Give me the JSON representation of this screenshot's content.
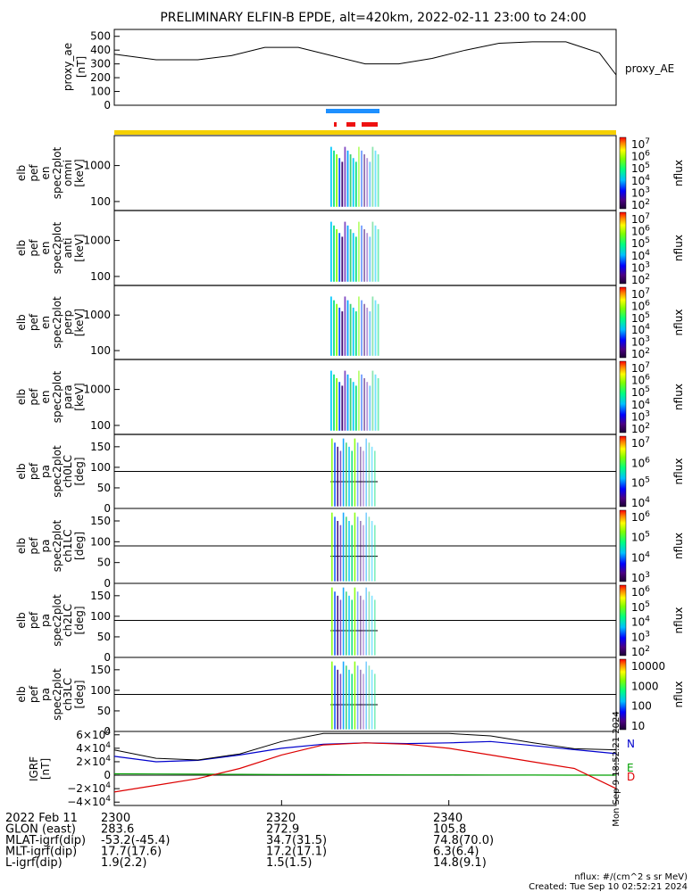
{
  "title": "PRELIMINARY ELFIN-B EPDE, alt=420km, 2022-02-11 23:00 to 24:00",
  "colors": {
    "blue_bar": "#1e90ff",
    "red_marks": "#ee1111",
    "yellow_bar": "#f5d000"
  },
  "chart_data": [
    {
      "type": "line",
      "name": "proxy_ae",
      "ylabel": [
        "proxy_ae",
        "[nT]"
      ],
      "legend": "proxy_AE",
      "yticks": [
        "500",
        "400",
        "300",
        "200",
        "100",
        "0"
      ],
      "ylim": [
        0,
        550
      ],
      "x": [
        2300,
        2305,
        2310,
        2314,
        2318,
        2322,
        2326,
        2330,
        2334,
        2338,
        2342,
        2346,
        2350,
        2354,
        2358,
        2360
      ],
      "y": [
        370,
        330,
        330,
        360,
        420,
        420,
        360,
        300,
        300,
        340,
        400,
        450,
        460,
        460,
        380,
        220
      ]
    },
    {
      "type": "heatmap",
      "name": "omni",
      "ylabel": [
        "elb",
        "pef",
        "en",
        "spec2plot",
        "omni",
        "[keV]"
      ],
      "yticks": [
        "1000",
        "100"
      ],
      "zlabel": "nflux",
      "zticks": [
        "10^7",
        "10^6",
        "10^5",
        "10^4",
        "10^3",
        "10^2"
      ]
    },
    {
      "type": "heatmap",
      "name": "anti",
      "ylabel": [
        "elb",
        "pef",
        "en",
        "spec2plot",
        "anti",
        "[keV]"
      ],
      "yticks": [
        "1000",
        "100"
      ],
      "zlabel": "nflux",
      "zticks": [
        "10^7",
        "10^6",
        "10^5",
        "10^4",
        "10^3",
        "10^2"
      ]
    },
    {
      "type": "heatmap",
      "name": "perp",
      "ylabel": [
        "elb",
        "pef",
        "en",
        "spec2plot",
        "perp",
        "[keV]"
      ],
      "yticks": [
        "1000",
        "100"
      ],
      "zlabel": "nflux",
      "zticks": [
        "10^7",
        "10^6",
        "10^5",
        "10^4",
        "10^3",
        "10^2"
      ]
    },
    {
      "type": "heatmap",
      "name": "para",
      "ylabel": [
        "elb",
        "pef",
        "en",
        "spec2plot",
        "para",
        "[keV]"
      ],
      "yticks": [
        "1000",
        "100"
      ],
      "zlabel": "nflux",
      "zticks": [
        "10^7",
        "10^6",
        "10^5",
        "10^4",
        "10^3",
        "10^2"
      ]
    },
    {
      "type": "heatmap",
      "name": "ch0LC",
      "ylabel": [
        "elb",
        "pef",
        "pa",
        "spec2plot",
        "ch0LC",
        "[deg]"
      ],
      "yticks": [
        "150",
        "100",
        "50",
        "0"
      ],
      "zlabel": "nflux",
      "zticks": [
        "10^7",
        "10^6",
        "10^5",
        "10^4"
      ]
    },
    {
      "type": "heatmap",
      "name": "ch1LC",
      "ylabel": [
        "elb",
        "pef",
        "pa",
        "spec2plot",
        "ch1LC",
        "[deg]"
      ],
      "yticks": [
        "150",
        "100",
        "50",
        "0"
      ],
      "zlabel": "nflux",
      "zticks": [
        "10^6",
        "10^5",
        "10^4",
        "10^3"
      ]
    },
    {
      "type": "heatmap",
      "name": "ch2LC",
      "ylabel": [
        "elb",
        "pef",
        "pa",
        "spec2plot",
        "ch2LC",
        "[deg]"
      ],
      "yticks": [
        "150",
        "100",
        "50",
        "0"
      ],
      "zlabel": "nflux",
      "zticks": [
        "10^6",
        "10^5",
        "10^4",
        "10^3",
        "10^2"
      ]
    },
    {
      "type": "heatmap",
      "name": "ch3LC",
      "ylabel": [
        "elb",
        "pef",
        "pa",
        "spec2plot",
        "ch3LC",
        "[deg]"
      ],
      "yticks": [
        "150",
        "100",
        "50",
        "0"
      ],
      "zlabel": "nflux",
      "zticks": [
        "10000",
        "1000",
        "100",
        "10"
      ]
    },
    {
      "type": "line",
      "name": "IGRF",
      "ylabel": [
        "IGRF",
        "[nT]"
      ],
      "yticks": [
        "6×10^4",
        "4×10^4",
        "2×10^4",
        "0",
        "−2×10^4",
        "−4×10^4"
      ],
      "ylim": [
        -45000,
        65000
      ],
      "legend": [
        "N",
        "E",
        "D"
      ],
      "x": [
        2300,
        2305,
        2310,
        2315,
        2320,
        2325,
        2330,
        2335,
        2340,
        2345,
        2350,
        2355,
        2360
      ],
      "series": [
        {
          "name": "N",
          "y": [
            28000,
            20000,
            22000,
            30000,
            40000,
            46000,
            48000,
            47000,
            48000,
            50000,
            44000,
            38000,
            32000
          ]
        },
        {
          "name": "E",
          "y": [
            2000,
            1800,
            1500,
            1200,
            1000,
            800,
            600,
            500,
            400,
            300,
            200,
            100,
            0
          ]
        },
        {
          "name": "D",
          "y": [
            -25000,
            -15000,
            -5000,
            10000,
            30000,
            45000,
            48000,
            46000,
            40000,
            30000,
            20000,
            10000,
            -20000
          ]
        }
      ]
    }
  ],
  "footer": {
    "rows": [
      {
        "label": "2022 Feb 11",
        "v1": "2300",
        "v2": "2320",
        "v3": "2340"
      },
      {
        "label": "GLON (east)",
        "v1": "283.6",
        "v2": "272.9",
        "v3": "105.8"
      },
      {
        "label": "MLAT-igrf(dip)",
        "v1": "-53.2(-45.4)",
        "v2": "34.7(31.5)",
        "v3": "74.8(70.0)"
      },
      {
        "label": "MLT-igrf(dip)",
        "v1": "17.7(17.6)",
        "v2": "17.2(17.1)",
        "v3": "6.3(6.4)"
      },
      {
        "label": "L-igrf(dip)",
        "v1": "1.9(2.2)",
        "v2": "1.5(1.5)",
        "v3": "14.8(9.1)"
      }
    ],
    "units_note": "nflux: #/(cm^2 s sr MeV)",
    "created": "Created: Tue Sep 10 02:52:21 2024",
    "side_stamp": "Mon Sep 9 18:52:21 2024"
  }
}
